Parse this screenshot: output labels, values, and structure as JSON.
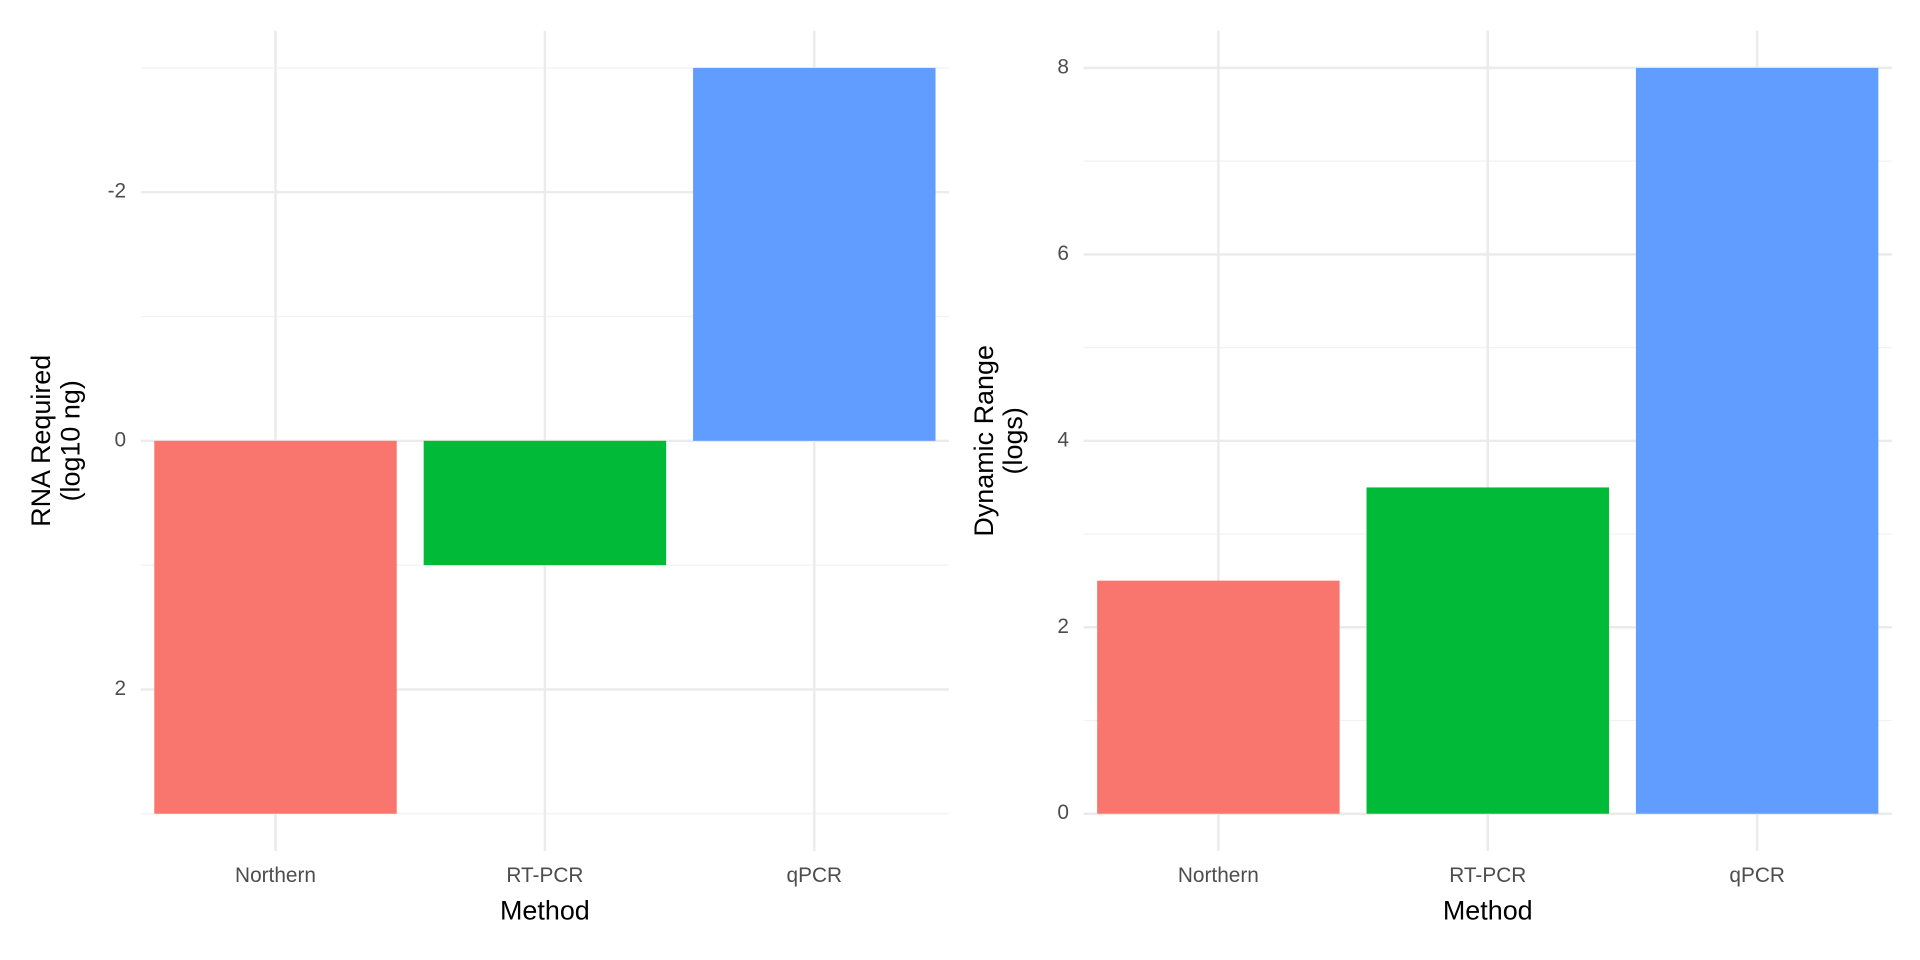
{
  "chart_data": [
    {
      "type": "bar",
      "categories": [
        "Northern",
        "RT-PCR",
        "qPCR"
      ],
      "values": [
        3,
        1,
        -3
      ],
      "colors": [
        "#F8766D",
        "#00BA38",
        "#619CFF"
      ],
      "ylim": [
        3.3,
        -3.3
      ],
      "yticks": [
        -2,
        0,
        2
      ],
      "x_label": "Method",
      "y_label": [
        "RNA Required",
        "(log10 ng)"
      ],
      "grid": true
    },
    {
      "type": "bar",
      "categories": [
        "Northern",
        "RT-PCR",
        "qPCR"
      ],
      "values": [
        2.5,
        3.5,
        8
      ],
      "colors": [
        "#F8766D",
        "#00BA38",
        "#619CFF"
      ],
      "ylim": [
        -0.4,
        8.4
      ],
      "yticks": [
        0,
        2,
        4,
        6,
        8
      ],
      "x_label": "Method",
      "y_label": [
        "Dynamic Range",
        "(logs)"
      ],
      "grid": true
    }
  ]
}
